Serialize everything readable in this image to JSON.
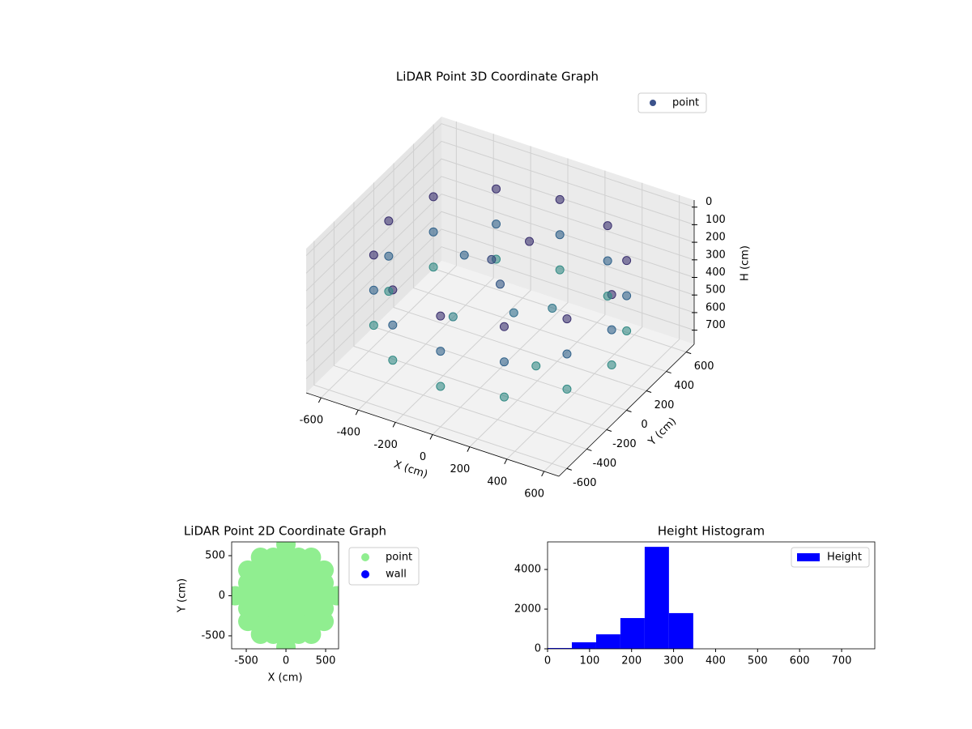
{
  "chart_data": [
    {
      "type": "scatter3d",
      "title": "LiDAR Point 3D Coordinate Graph",
      "xlabel": "X (cm)",
      "ylabel": "Y (cm)",
      "zlabel": "H (cm)",
      "xlim": [
        -680,
        680
      ],
      "ylim": [
        -680,
        680
      ],
      "zlim": [
        -40,
        780
      ],
      "z_inverted": true,
      "xticks": [
        -600,
        -400,
        -200,
        0,
        200,
        400,
        600
      ],
      "yticks": [
        -600,
        -400,
        -200,
        0,
        200,
        400,
        600
      ],
      "zticks": [
        0,
        100,
        200,
        300,
        400,
        500,
        600,
        700
      ],
      "grid": true,
      "legend": "upper right",
      "colormap": [
        "#440154",
        "#31688e",
        "#35b779"
      ],
      "series": [
        {
          "name": "point",
          "color": "#3b528b",
          "x": [
            600,
            520,
            300,
            0,
            -300,
            -520,
            -600,
            -520,
            -300,
            0,
            300,
            520,
            600,
            520,
            300,
            0,
            -300,
            -520,
            -600,
            -520,
            -300,
            0,
            300,
            520,
            600,
            520,
            300,
            0,
            -300,
            -520,
            -600,
            -520,
            -300,
            0,
            300,
            520,
            0,
            -100,
            50,
            100,
            -200,
            200,
            -300,
            300
          ],
          "y": [
            0,
            300,
            520,
            600,
            520,
            300,
            0,
            -300,
            -520,
            -600,
            -520,
            -300,
            0,
            300,
            520,
            600,
            520,
            300,
            0,
            -300,
            -520,
            -600,
            -520,
            -300,
            0,
            300,
            520,
            600,
            520,
            300,
            0,
            -300,
            -520,
            -600,
            -520,
            -300,
            0,
            100,
            200,
            -50,
            -100,
            150,
            200,
            -200
          ],
          "z": [
            150,
            150,
            150,
            150,
            150,
            150,
            150,
            150,
            150,
            150,
            150,
            150,
            350,
            350,
            350,
            350,
            350,
            350,
            350,
            350,
            350,
            350,
            350,
            350,
            550,
            550,
            550,
            550,
            550,
            550,
            550,
            550,
            550,
            550,
            550,
            550,
            300,
            250,
            150,
            400,
            500,
            450,
            350,
            550
          ]
        }
      ]
    },
    {
      "type": "scatter",
      "title": "LiDAR Point 2D Coordinate Graph",
      "xlabel": "X (cm)",
      "ylabel": "Y (cm)",
      "xlim": [
        -684,
        663
      ],
      "ylim": [
        -662,
        672
      ],
      "xticks": [
        -500,
        0,
        500
      ],
      "yticks": [
        -500,
        0,
        500
      ],
      "legend": "outside right",
      "series": [
        {
          "name": "point",
          "color": "#90ee90",
          "x": [
            -640,
            -480,
            -480,
            -480,
            -480,
            -480,
            -320,
            -320,
            -320,
            -320,
            -320,
            -320,
            -320,
            -160,
            -160,
            -160,
            -160,
            -160,
            -160,
            -160,
            0,
            0,
            0,
            0,
            0,
            0,
            0,
            0,
            0,
            160,
            160,
            160,
            160,
            160,
            160,
            160,
            320,
            320,
            320,
            320,
            320,
            320,
            320,
            480,
            480,
            480,
            480,
            480,
            640
          ],
          "y": [
            0,
            -320,
            -160,
            0,
            160,
            320,
            -480,
            -320,
            -160,
            0,
            160,
            320,
            480,
            -480,
            -320,
            -160,
            0,
            160,
            320,
            480,
            -640,
            -480,
            -320,
            -160,
            0,
            160,
            320,
            480,
            640,
            -480,
            -320,
            -160,
            0,
            160,
            320,
            480,
            -480,
            -320,
            -160,
            0,
            160,
            320,
            480,
            -320,
            -160,
            0,
            160,
            320,
            0
          ]
        },
        {
          "name": "wall",
          "color": "#0000ff",
          "x": [],
          "y": []
        }
      ]
    },
    {
      "type": "histogram",
      "title": "Height Histogram",
      "name": "Height",
      "color": "#0000ff",
      "bins": [
        0,
        57.8,
        115.6,
        173.4,
        231.2,
        289,
        346.8,
        404.6,
        462.4,
        520.2,
        578
      ],
      "counts": [
        40,
        330,
        730,
        1550,
        5140,
        1800,
        0,
        0,
        0,
        0
      ],
      "xlim": [
        0,
        779
      ],
      "ylim": [
        0,
        5390
      ],
      "xticks": [
        0,
        100,
        200,
        300,
        400,
        500,
        600,
        700
      ],
      "yticks": [
        0,
        2000,
        4000
      ],
      "legend": "upper right"
    }
  ]
}
